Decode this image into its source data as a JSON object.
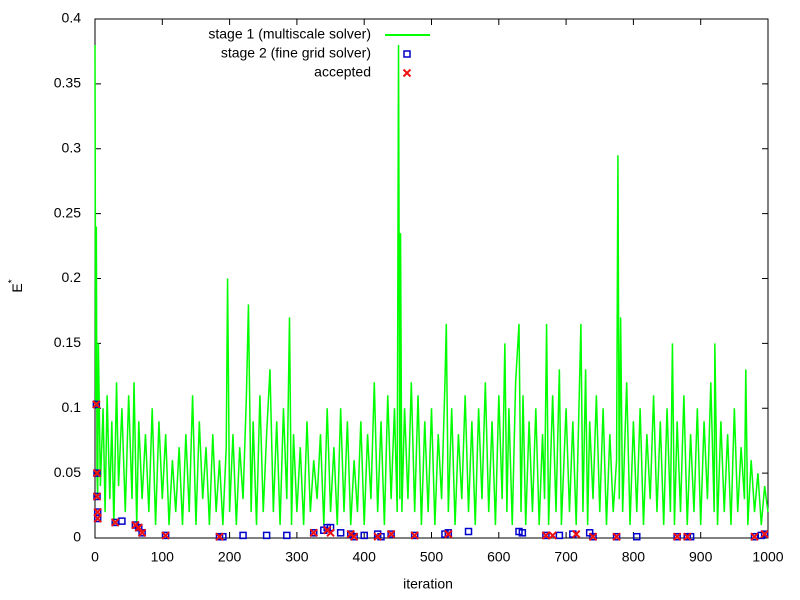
{
  "chart_data": {
    "type": "line",
    "x_label": "iteration",
    "y_label": "E",
    "y_label_sup": "*",
    "xlim": [
      0,
      1000
    ],
    "ylim": [
      0,
      0.4
    ],
    "xticks": [
      0,
      100,
      200,
      300,
      400,
      500,
      600,
      700,
      800,
      900,
      1000
    ],
    "yticks": [
      0,
      0.05,
      0.1,
      0.15,
      0.2,
      0.25,
      0.3,
      0.35,
      0.4
    ],
    "grid": false,
    "legend_position": "top",
    "series": [
      {
        "name": "stage 1 (multiscale solver)",
        "color": "#00ff00",
        "mark": "line",
        "x": [
          0,
          1,
          2,
          3,
          4,
          5,
          8,
          12,
          15,
          18,
          22,
          25,
          28,
          32,
          35,
          40,
          45,
          50,
          55,
          58,
          62,
          65,
          70,
          75,
          80,
          85,
          90,
          95,
          100,
          105,
          110,
          115,
          120,
          125,
          130,
          135,
          140,
          145,
          150,
          155,
          160,
          165,
          170,
          175,
          180,
          185,
          190,
          195,
          197,
          200,
          205,
          210,
          215,
          220,
          225,
          228,
          232,
          235,
          240,
          245,
          250,
          255,
          260,
          265,
          270,
          275,
          280,
          285,
          289,
          292,
          295,
          300,
          305,
          310,
          315,
          320,
          325,
          330,
          335,
          340,
          345,
          350,
          355,
          360,
          365,
          370,
          375,
          380,
          385,
          390,
          395,
          400,
          405,
          410,
          415,
          420,
          425,
          430,
          435,
          440,
          445,
          449,
          451,
          453,
          454,
          456,
          460,
          465,
          470,
          475,
          480,
          485,
          490,
          495,
          500,
          505,
          510,
          515,
          520,
          522,
          525,
          530,
          535,
          540,
          545,
          550,
          555,
          560,
          565,
          570,
          575,
          580,
          585,
          590,
          595,
          600,
          605,
          609,
          612,
          615,
          620,
          625,
          630,
          633,
          636,
          640,
          645,
          650,
          655,
          660,
          665,
          668,
          671,
          674,
          680,
          685,
          690,
          693,
          700,
          705,
          710,
          715,
          720,
          722,
          725,
          729,
          732,
          735,
          740,
          745,
          750,
          755,
          760,
          765,
          770,
          775,
          777,
          779,
          781,
          784,
          790,
          795,
          800,
          805,
          810,
          815,
          820,
          825,
          830,
          835,
          840,
          845,
          850,
          855,
          858,
          861,
          865,
          870,
          875,
          880,
          885,
          890,
          895,
          900,
          905,
          910,
          915,
          920,
          921,
          925,
          930,
          935,
          940,
          945,
          950,
          955,
          960,
          965,
          967,
          970,
          975,
          980,
          985,
          990,
          995,
          1000
        ],
        "values": [
          0.38,
          0.1,
          0.24,
          0.05,
          0.03,
          0.15,
          0.04,
          0.1,
          0.02,
          0.11,
          0.03,
          0.09,
          0.01,
          0.12,
          0.04,
          0.1,
          0.02,
          0.11,
          0.03,
          0.12,
          0.01,
          0.09,
          0.03,
          0.08,
          0.02,
          0.1,
          0.01,
          0.09,
          0.03,
          0.08,
          0.01,
          0.06,
          0.02,
          0.07,
          0.01,
          0.08,
          0.02,
          0.11,
          0.01,
          0.09,
          0.03,
          0.07,
          0.01,
          0.08,
          0.02,
          0.06,
          0.01,
          0.07,
          0.2,
          0.02,
          0.08,
          0.01,
          0.07,
          0.03,
          0.11,
          0.18,
          0.02,
          0.09,
          0.01,
          0.11,
          0.02,
          0.08,
          0.13,
          0.02,
          0.09,
          0.01,
          0.1,
          0.03,
          0.17,
          0.01,
          0.08,
          0.02,
          0.07,
          0.01,
          0.09,
          0.02,
          0.06,
          0.03,
          0.08,
          0.01,
          0.1,
          0.02,
          0.07,
          0.01,
          0.1,
          0.02,
          0.09,
          0.01,
          0.06,
          0.02,
          0.09,
          0.01,
          0.08,
          0.03,
          0.12,
          0.02,
          0.09,
          0.01,
          0.11,
          0.03,
          0.1,
          0.02,
          0.38,
          0.03,
          0.235,
          0.02,
          0.1,
          0.03,
          0.12,
          0.02,
          0.11,
          0.01,
          0.09,
          0.02,
          0.1,
          0.01,
          0.08,
          0.03,
          0.12,
          0.165,
          0.02,
          0.1,
          0.01,
          0.08,
          0.03,
          0.11,
          0.02,
          0.09,
          0.01,
          0.1,
          0.03,
          0.12,
          0.02,
          0.09,
          0.01,
          0.11,
          0.03,
          0.15,
          0.02,
          0.1,
          0.01,
          0.12,
          0.165,
          0.02,
          0.11,
          0.01,
          0.09,
          0.02,
          0.1,
          0.01,
          0.08,
          0.03,
          0.165,
          0.01,
          0.11,
          0.02,
          0.13,
          0.01,
          0.1,
          0.02,
          0.09,
          0.01,
          0.12,
          0.165,
          0.02,
          0.13,
          0.01,
          0.09,
          0.03,
          0.11,
          0.02,
          0.1,
          0.01,
          0.08,
          0.02,
          0.06,
          0.295,
          0.03,
          0.17,
          0.02,
          0.12,
          0.01,
          0.09,
          0.02,
          0.1,
          0.01,
          0.08,
          0.03,
          0.11,
          0.02,
          0.09,
          0.01,
          0.1,
          0.02,
          0.15,
          0.01,
          0.09,
          0.02,
          0.11,
          0.01,
          0.08,
          0.02,
          0.1,
          0.01,
          0.09,
          0.03,
          0.12,
          0.02,
          0.15,
          0.01,
          0.09,
          0.02,
          0.08,
          0.01,
          0.1,
          0.02,
          0.07,
          0.03,
          0.13,
          0.01,
          0.06,
          0.02,
          0.05,
          0.01,
          0.04,
          0.02
        ]
      },
      {
        "name": "stage 2 (fine grid solver)",
        "color": "#0000cc",
        "mark": "square",
        "x": [
          2,
          3,
          3,
          4,
          4,
          30,
          40,
          60,
          65,
          70,
          105,
          185,
          190,
          220,
          255,
          285,
          325,
          340,
          345,
          350,
          365,
          380,
          385,
          400,
          420,
          425,
          440,
          475,
          520,
          525,
          555,
          630,
          635,
          670,
          690,
          710,
          735,
          740,
          775,
          805,
          865,
          880,
          885,
          980,
          990,
          995
        ],
        "values": [
          0.103,
          0.05,
          0.032,
          0.02,
          0.015,
          0.012,
          0.013,
          0.01,
          0.008,
          0.004,
          0.002,
          0.001,
          0.001,
          0.002,
          0.002,
          0.002,
          0.004,
          0.006,
          0.008,
          0.008,
          0.004,
          0.003,
          0.001,
          0.002,
          0.003,
          0.001,
          0.003,
          0.002,
          0.003,
          0.004,
          0.005,
          0.005,
          0.004,
          0.002,
          0.002,
          0.003,
          0.004,
          0.001,
          0.001,
          0.001,
          0.001,
          0.001,
          0.001,
          0.001,
          0.002,
          0.003
        ]
      },
      {
        "name": "accepted",
        "color": "#ee1111",
        "mark": "cross",
        "x": [
          2,
          3,
          3,
          4,
          4,
          30,
          60,
          65,
          70,
          105,
          185,
          325,
          345,
          350,
          380,
          385,
          420,
          440,
          475,
          525,
          670,
          680,
          715,
          740,
          775,
          865,
          880,
          980,
          995
        ],
        "values": [
          0.103,
          0.05,
          0.032,
          0.02,
          0.015,
          0.012,
          0.01,
          0.008,
          0.004,
          0.002,
          0.001,
          0.004,
          0.006,
          0.004,
          0.003,
          0.001,
          0.001,
          0.003,
          0.002,
          0.003,
          0.002,
          0.002,
          0.003,
          0.001,
          0.001,
          0.001,
          0.001,
          0.001,
          0.003
        ]
      }
    ]
  }
}
